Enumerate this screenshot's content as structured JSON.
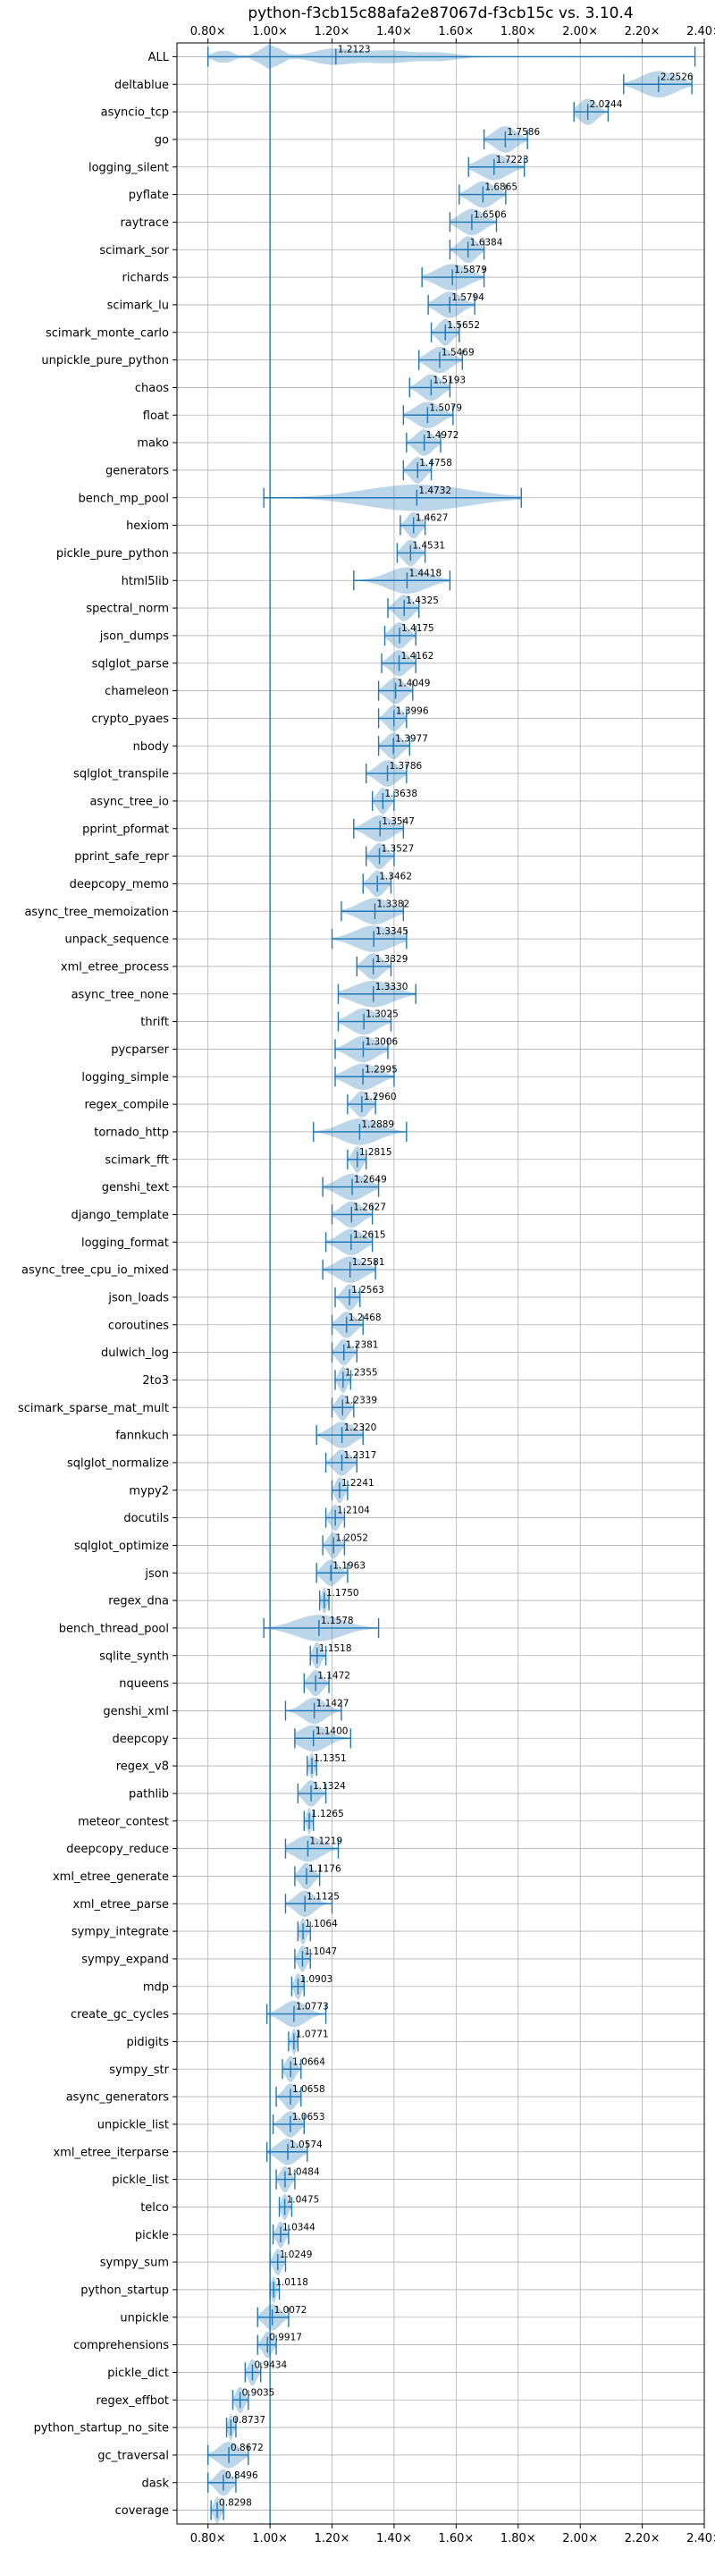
{
  "chart_data": {
    "type": "violin",
    "title": "python-f3cb15c88afa2e87067d-f3cb15c vs. 3.10.4",
    "xlabel": "",
    "ylabel": "",
    "xlim": [
      0.7,
      2.4
    ],
    "xticks": [
      0.8,
      1.0,
      1.2,
      1.4,
      1.6,
      1.8,
      2.0,
      2.2,
      2.4
    ],
    "xtick_labels": [
      "0.80×",
      "1.00×",
      "1.20×",
      "1.40×",
      "1.60×",
      "1.80×",
      "2.00×",
      "2.20×",
      "2.40×"
    ],
    "reference_line": 1.0,
    "grid": true,
    "color": "#1f77b4",
    "benchmarks": [
      {
        "name": "ALL",
        "label": "1.2123",
        "value": 1.2123,
        "min": 0.8,
        "max": 2.37,
        "dist": "all"
      },
      {
        "name": "deltablue",
        "label": "2.2526",
        "value": 2.2526,
        "min": 2.14,
        "max": 2.36
      },
      {
        "name": "asyncio_tcp",
        "label": "2.0244",
        "value": 2.0244,
        "min": 1.98,
        "max": 2.09
      },
      {
        "name": "go",
        "label": "1.7586",
        "value": 1.7586,
        "min": 1.69,
        "max": 1.83
      },
      {
        "name": "logging_silent",
        "label": "1.7223",
        "value": 1.7223,
        "min": 1.64,
        "max": 1.82
      },
      {
        "name": "pyflate",
        "label": "1.6865",
        "value": 1.6865,
        "min": 1.61,
        "max": 1.76
      },
      {
        "name": "raytrace",
        "label": "1.6506",
        "value": 1.6506,
        "min": 1.58,
        "max": 1.73
      },
      {
        "name": "scimark_sor",
        "label": "1.6384",
        "value": 1.6384,
        "min": 1.58,
        "max": 1.69
      },
      {
        "name": "richards",
        "label": "1.5879",
        "value": 1.5879,
        "min": 1.49,
        "max": 1.69
      },
      {
        "name": "scimark_lu",
        "label": "1.5794",
        "value": 1.5794,
        "min": 1.51,
        "max": 1.66
      },
      {
        "name": "scimark_monte_carlo",
        "label": "1.5652",
        "value": 1.5652,
        "min": 1.52,
        "max": 1.61
      },
      {
        "name": "unpickle_pure_python",
        "label": "1.5469",
        "value": 1.5469,
        "min": 1.48,
        "max": 1.62
      },
      {
        "name": "chaos",
        "label": "1.5193",
        "value": 1.5193,
        "min": 1.45,
        "max": 1.58
      },
      {
        "name": "float",
        "label": "1.5079",
        "value": 1.5079,
        "min": 1.43,
        "max": 1.59
      },
      {
        "name": "mako",
        "label": "1.4972",
        "value": 1.4972,
        "min": 1.44,
        "max": 1.55
      },
      {
        "name": "generators",
        "label": "1.4758",
        "value": 1.4758,
        "min": 1.43,
        "max": 1.52
      },
      {
        "name": "bench_mp_pool",
        "label": "1.4732",
        "value": 1.4732,
        "min": 0.98,
        "max": 1.81,
        "dist": "wide"
      },
      {
        "name": "hexiom",
        "label": "1.4627",
        "value": 1.4627,
        "min": 1.42,
        "max": 1.5
      },
      {
        "name": "pickle_pure_python",
        "label": "1.4531",
        "value": 1.4531,
        "min": 1.41,
        "max": 1.5
      },
      {
        "name": "html5lib",
        "label": "1.4418",
        "value": 1.4418,
        "min": 1.27,
        "max": 1.58,
        "dist": "wide"
      },
      {
        "name": "spectral_norm",
        "label": "1.4325",
        "value": 1.4325,
        "min": 1.38,
        "max": 1.48
      },
      {
        "name": "json_dumps",
        "label": "1.4175",
        "value": 1.4175,
        "min": 1.37,
        "max": 1.47
      },
      {
        "name": "sqlglot_parse",
        "label": "1.4162",
        "value": 1.4162,
        "min": 1.36,
        "max": 1.47
      },
      {
        "name": "chameleon",
        "label": "1.4049",
        "value": 1.4049,
        "min": 1.35,
        "max": 1.46
      },
      {
        "name": "crypto_pyaes",
        "label": "1.3996",
        "value": 1.3996,
        "min": 1.35,
        "max": 1.44
      },
      {
        "name": "nbody",
        "label": "1.3977",
        "value": 1.3977,
        "min": 1.35,
        "max": 1.45
      },
      {
        "name": "sqlglot_transpile",
        "label": "1.3786",
        "value": 1.3786,
        "min": 1.31,
        "max": 1.44
      },
      {
        "name": "async_tree_io",
        "label": "1.3638",
        "value": 1.3638,
        "min": 1.33,
        "max": 1.4
      },
      {
        "name": "pprint_pformat",
        "label": "1.3547",
        "value": 1.3547,
        "min": 1.27,
        "max": 1.43
      },
      {
        "name": "pprint_safe_repr",
        "label": "1.3527",
        "value": 1.3527,
        "min": 1.31,
        "max": 1.4
      },
      {
        "name": "deepcopy_memo",
        "label": "1.3462",
        "value": 1.3462,
        "min": 1.3,
        "max": 1.39
      },
      {
        "name": "async_tree_memoization",
        "label": "1.3382",
        "value": 1.3382,
        "min": 1.23,
        "max": 1.43
      },
      {
        "name": "unpack_sequence",
        "label": "1.3345",
        "value": 1.3345,
        "min": 1.2,
        "max": 1.44
      },
      {
        "name": "xml_etree_process",
        "label": "1.3329",
        "value": 1.3329,
        "min": 1.28,
        "max": 1.39
      },
      {
        "name": "async_tree_none",
        "label": "1.3330",
        "value": 1.333,
        "min": 1.22,
        "max": 1.47
      },
      {
        "name": "thrift",
        "label": "1.3025",
        "value": 1.3025,
        "min": 1.22,
        "max": 1.39
      },
      {
        "name": "pycparser",
        "label": "1.3006",
        "value": 1.3006,
        "min": 1.21,
        "max": 1.38
      },
      {
        "name": "logging_simple",
        "label": "1.2995",
        "value": 1.2995,
        "min": 1.21,
        "max": 1.4
      },
      {
        "name": "regex_compile",
        "label": "1.2960",
        "value": 1.296,
        "min": 1.25,
        "max": 1.34
      },
      {
        "name": "tornado_http",
        "label": "1.2889",
        "value": 1.2889,
        "min": 1.14,
        "max": 1.44,
        "dist": "wide"
      },
      {
        "name": "scimark_fft",
        "label": "1.2815",
        "value": 1.2815,
        "min": 1.25,
        "max": 1.31
      },
      {
        "name": "genshi_text",
        "label": "1.2649",
        "value": 1.2649,
        "min": 1.17,
        "max": 1.35
      },
      {
        "name": "django_template",
        "label": "1.2627",
        "value": 1.2627,
        "min": 1.2,
        "max": 1.33
      },
      {
        "name": "logging_format",
        "label": "1.2615",
        "value": 1.2615,
        "min": 1.18,
        "max": 1.33
      },
      {
        "name": "async_tree_cpu_io_mixed",
        "label": "1.2581",
        "value": 1.2581,
        "min": 1.17,
        "max": 1.34
      },
      {
        "name": "json_loads",
        "label": "1.2563",
        "value": 1.2563,
        "min": 1.21,
        "max": 1.29
      },
      {
        "name": "coroutines",
        "label": "1.2468",
        "value": 1.2468,
        "min": 1.2,
        "max": 1.3
      },
      {
        "name": "dulwich_log",
        "label": "1.2381",
        "value": 1.2381,
        "min": 1.2,
        "max": 1.28
      },
      {
        "name": "2to3",
        "label": "1.2355",
        "value": 1.2355,
        "min": 1.21,
        "max": 1.26
      },
      {
        "name": "scimark_sparse_mat_mult",
        "label": "1.2339",
        "value": 1.2339,
        "min": 1.2,
        "max": 1.27
      },
      {
        "name": "fannkuch",
        "label": "1.2320",
        "value": 1.232,
        "min": 1.15,
        "max": 1.3
      },
      {
        "name": "sqlglot_normalize",
        "label": "1.2317",
        "value": 1.2317,
        "min": 1.18,
        "max": 1.28
      },
      {
        "name": "mypy2",
        "label": "1.2241",
        "value": 1.2241,
        "min": 1.2,
        "max": 1.25
      },
      {
        "name": "docutils",
        "label": "1.2104",
        "value": 1.2104,
        "min": 1.18,
        "max": 1.24
      },
      {
        "name": "sqlglot_optimize",
        "label": "1.2052",
        "value": 1.2052,
        "min": 1.17,
        "max": 1.24
      },
      {
        "name": "json",
        "label": "1.1963",
        "value": 1.1963,
        "min": 1.15,
        "max": 1.25
      },
      {
        "name": "regex_dna",
        "label": "1.1750",
        "value": 1.175,
        "min": 1.16,
        "max": 1.19
      },
      {
        "name": "bench_thread_pool",
        "label": "1.1578",
        "value": 1.1578,
        "min": 0.98,
        "max": 1.35,
        "dist": "wide"
      },
      {
        "name": "sqlite_synth",
        "label": "1.1518",
        "value": 1.1518,
        "min": 1.13,
        "max": 1.18
      },
      {
        "name": "nqueens",
        "label": "1.1472",
        "value": 1.1472,
        "min": 1.11,
        "max": 1.19
      },
      {
        "name": "genshi_xml",
        "label": "1.1427",
        "value": 1.1427,
        "min": 1.05,
        "max": 1.23,
        "dist": "wide"
      },
      {
        "name": "deepcopy",
        "label": "1.1400",
        "value": 1.14,
        "min": 1.08,
        "max": 1.26
      },
      {
        "name": "regex_v8",
        "label": "1.1351",
        "value": 1.1351,
        "min": 1.12,
        "max": 1.15
      },
      {
        "name": "pathlib",
        "label": "1.1324",
        "value": 1.1324,
        "min": 1.09,
        "max": 1.18
      },
      {
        "name": "meteor_contest",
        "label": "1.1265",
        "value": 1.1265,
        "min": 1.11,
        "max": 1.14
      },
      {
        "name": "deepcopy_reduce",
        "label": "1.1219",
        "value": 1.1219,
        "min": 1.05,
        "max": 1.22
      },
      {
        "name": "xml_etree_generate",
        "label": "1.1176",
        "value": 1.1176,
        "min": 1.08,
        "max": 1.16
      },
      {
        "name": "xml_etree_parse",
        "label": "1.1125",
        "value": 1.1125,
        "min": 1.05,
        "max": 1.2,
        "dist": "wide"
      },
      {
        "name": "sympy_integrate",
        "label": "1.1064",
        "value": 1.1064,
        "min": 1.09,
        "max": 1.13
      },
      {
        "name": "sympy_expand",
        "label": "1.1047",
        "value": 1.1047,
        "min": 1.08,
        "max": 1.13
      },
      {
        "name": "mdp",
        "label": "1.0903",
        "value": 1.0903,
        "min": 1.07,
        "max": 1.11
      },
      {
        "name": "create_gc_cycles",
        "label": "1.0773",
        "value": 1.0773,
        "min": 0.99,
        "max": 1.18,
        "dist": "wide"
      },
      {
        "name": "pidigits",
        "label": "1.0771",
        "value": 1.0771,
        "min": 1.06,
        "max": 1.09
      },
      {
        "name": "sympy_str",
        "label": "1.0664",
        "value": 1.0664,
        "min": 1.04,
        "max": 1.1
      },
      {
        "name": "async_generators",
        "label": "1.0658",
        "value": 1.0658,
        "min": 1.02,
        "max": 1.1
      },
      {
        "name": "unpickle_list",
        "label": "1.0653",
        "value": 1.0653,
        "min": 1.01,
        "max": 1.11
      },
      {
        "name": "xml_etree_iterparse",
        "label": "1.0574",
        "value": 1.0574,
        "min": 0.99,
        "max": 1.12
      },
      {
        "name": "pickle_list",
        "label": "1.0484",
        "value": 1.0484,
        "min": 1.02,
        "max": 1.08
      },
      {
        "name": "telco",
        "label": "1.0475",
        "value": 1.0475,
        "min": 1.03,
        "max": 1.07
      },
      {
        "name": "pickle",
        "label": "1.0344",
        "value": 1.0344,
        "min": 1.01,
        "max": 1.06
      },
      {
        "name": "sympy_sum",
        "label": "1.0249",
        "value": 1.0249,
        "min": 1.0,
        "max": 1.05
      },
      {
        "name": "python_startup",
        "label": "1.0118",
        "value": 1.0118,
        "min": 1.0,
        "max": 1.03
      },
      {
        "name": "unpickle",
        "label": "1.0072",
        "value": 1.0072,
        "min": 0.96,
        "max": 1.06
      },
      {
        "name": "comprehensions",
        "label": "0.9917",
        "value": 0.9917,
        "min": 0.96,
        "max": 1.02
      },
      {
        "name": "pickle_dict",
        "label": "0.9434",
        "value": 0.9434,
        "min": 0.92,
        "max": 0.97
      },
      {
        "name": "regex_effbot",
        "label": "0.9035",
        "value": 0.9035,
        "min": 0.88,
        "max": 0.93
      },
      {
        "name": "python_startup_no_site",
        "label": "0.8737",
        "value": 0.8737,
        "min": 0.86,
        "max": 0.89
      },
      {
        "name": "gc_traversal",
        "label": "0.8672",
        "value": 0.8672,
        "min": 0.8,
        "max": 0.93
      },
      {
        "name": "dask",
        "label": "0.8496",
        "value": 0.8496,
        "min": 0.8,
        "max": 0.89
      },
      {
        "name": "coverage",
        "label": "0.8298",
        "value": 0.8298,
        "min": 0.81,
        "max": 0.85
      }
    ]
  }
}
